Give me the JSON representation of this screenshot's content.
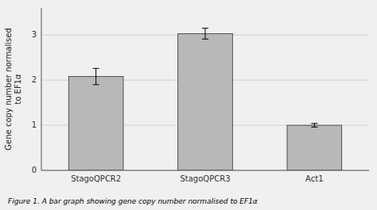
{
  "chart_data": {
    "type": "bar",
    "categories": [
      "StagoQPCR2",
      "StagoQPCR3",
      "Act1"
    ],
    "values": [
      2.08,
      3.03,
      1.0
    ],
    "errors": [
      0.18,
      0.12,
      0.04
    ],
    "color": "#b8b8b8",
    "ylabel": "Gene copy number normalised\nto EF1α",
    "ylim": [
      0,
      3.6
    ],
    "yticks": [
      0,
      1,
      2,
      3
    ],
    "grid": true,
    "caption": "Figure 1. A bar graph showing gene copy number normalised to EF1α"
  }
}
